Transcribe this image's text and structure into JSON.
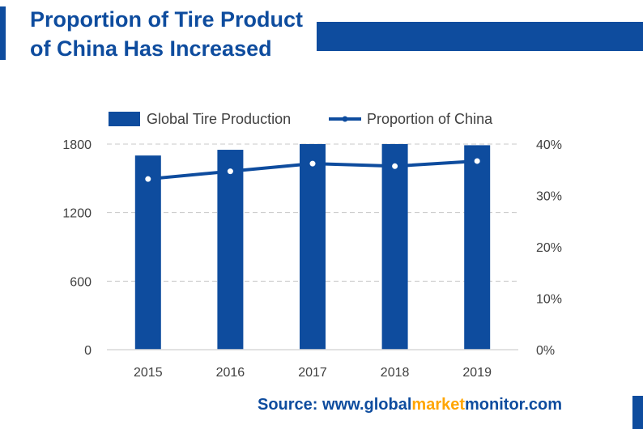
{
  "title": "Proportion of Tire Product of China Has Increased",
  "source": {
    "prefix": "Source: www.",
    "part1": "global",
    "part2": "market",
    "part3": "monitor",
    "suffix": ".com"
  },
  "colors": {
    "primary": "#0E4C9E",
    "highlight": "#FFA500",
    "grid": "#C8C8C8",
    "text": "#404040"
  },
  "chart_data": {
    "type": "bar",
    "categories": [
      "2015",
      "2016",
      "2017",
      "2018",
      "2019"
    ],
    "series": [
      {
        "name": "Global Tire Production",
        "type": "bar",
        "axis": "left",
        "values": [
          1700,
          1750,
          1800,
          1800,
          1790
        ]
      },
      {
        "name": "Proportion of China",
        "type": "line",
        "axis": "right",
        "values": [
          33.2,
          34.7,
          36.2,
          35.7,
          36.7
        ]
      }
    ],
    "y_left": {
      "ticks": [
        "1800",
        "1200",
        "600",
        "0"
      ],
      "range": [
        0,
        1800
      ]
    },
    "y_right": {
      "ticks": [
        "40%",
        "30%",
        "20%",
        "10%",
        "0%"
      ],
      "range": [
        0,
        40
      ]
    },
    "grid": true,
    "legend_position": "top"
  }
}
